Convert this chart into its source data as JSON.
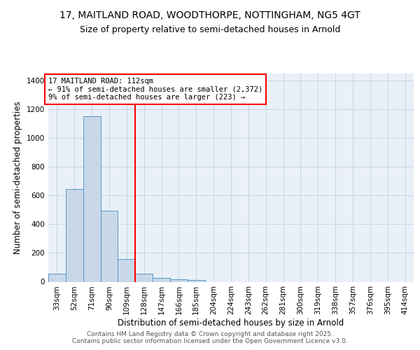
{
  "title_line1": "17, MAITLAND ROAD, WOODTHORPE, NOTTINGHAM, NG5 4GT",
  "title_line2": "Size of property relative to semi-detached houses in Arnold",
  "xlabel": "Distribution of semi-detached houses by size in Arnold",
  "ylabel": "Number of semi-detached properties",
  "bin_labels": [
    "33sqm",
    "52sqm",
    "71sqm",
    "90sqm",
    "109sqm",
    "128sqm",
    "147sqm",
    "166sqm",
    "185sqm",
    "204sqm",
    "224sqm",
    "243sqm",
    "262sqm",
    "281sqm",
    "300sqm",
    "319sqm",
    "338sqm",
    "357sqm",
    "376sqm",
    "395sqm",
    "414sqm"
  ],
  "bar_values": [
    57,
    645,
    1155,
    497,
    160,
    57,
    28,
    15,
    10,
    0,
    0,
    0,
    0,
    0,
    0,
    0,
    0,
    0,
    0,
    0,
    0
  ],
  "bar_color": "#c8d8e8",
  "bar_edge_color": "#5599cc",
  "red_line_x": 4.5,
  "annotation_text": "17 MAITLAND ROAD: 112sqm\n← 91% of semi-detached houses are smaller (2,372)\n9% of semi-detached houses are larger (223) →",
  "annotation_box_color": "white",
  "annotation_box_edge_color": "red",
  "red_line_color": "red",
  "ylim": [
    0,
    1450
  ],
  "yticks": [
    0,
    200,
    400,
    600,
    800,
    1000,
    1200,
    1400
  ],
  "grid_color": "#c8d8e8",
  "background_color": "#eaf0f8",
  "footer_text": "Contains HM Land Registry data © Crown copyright and database right 2025.\nContains public sector information licensed under the Open Government Licence v3.0.",
  "title_fontsize": 10,
  "subtitle_fontsize": 9,
  "axis_label_fontsize": 8.5,
  "tick_fontsize": 7.5,
  "annotation_fontsize": 7.5,
  "footer_fontsize": 6.5
}
